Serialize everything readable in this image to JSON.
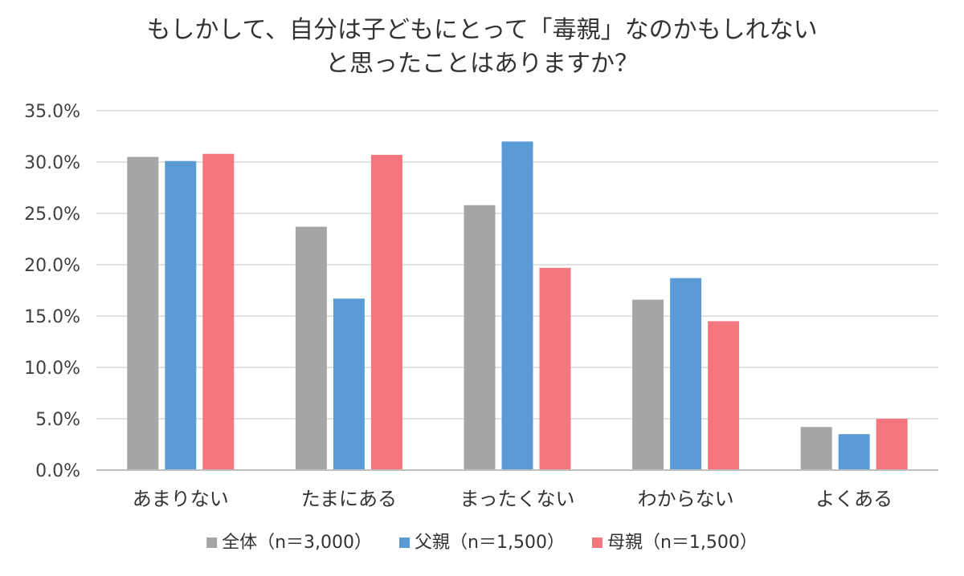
{
  "chart_data": {
    "type": "bar",
    "title_lines": [
      "もしかして、自分は子どもにとって「毒親」なのかもしれない",
      "と思ったことはありますか？"
    ],
    "categories": [
      "あまりない",
      "たまにある",
      "まったくない",
      "わからない",
      "よくある"
    ],
    "series": [
      {
        "name": "全体（n＝3,000）",
        "color": "#A5A5A5",
        "values": [
          30.5,
          23.7,
          25.8,
          16.6,
          4.2
        ]
      },
      {
        "name": "父親（n＝1,500）",
        "color": "#5B9BD5",
        "values": [
          30.1,
          16.7,
          32.0,
          18.7,
          3.5
        ]
      },
      {
        "name": "母親（n＝1,500）",
        "color": "#F4767F",
        "values": [
          30.8,
          30.7,
          19.7,
          14.5,
          5.0
        ]
      }
    ],
    "ylim": [
      0,
      35
    ],
    "yticks": [
      "0.0%",
      "5.0%",
      "10.0%",
      "15.0%",
      "20.0%",
      "25.0%",
      "30.0%",
      "35.0%"
    ],
    "grid": true,
    "legend_position": "bottom"
  }
}
